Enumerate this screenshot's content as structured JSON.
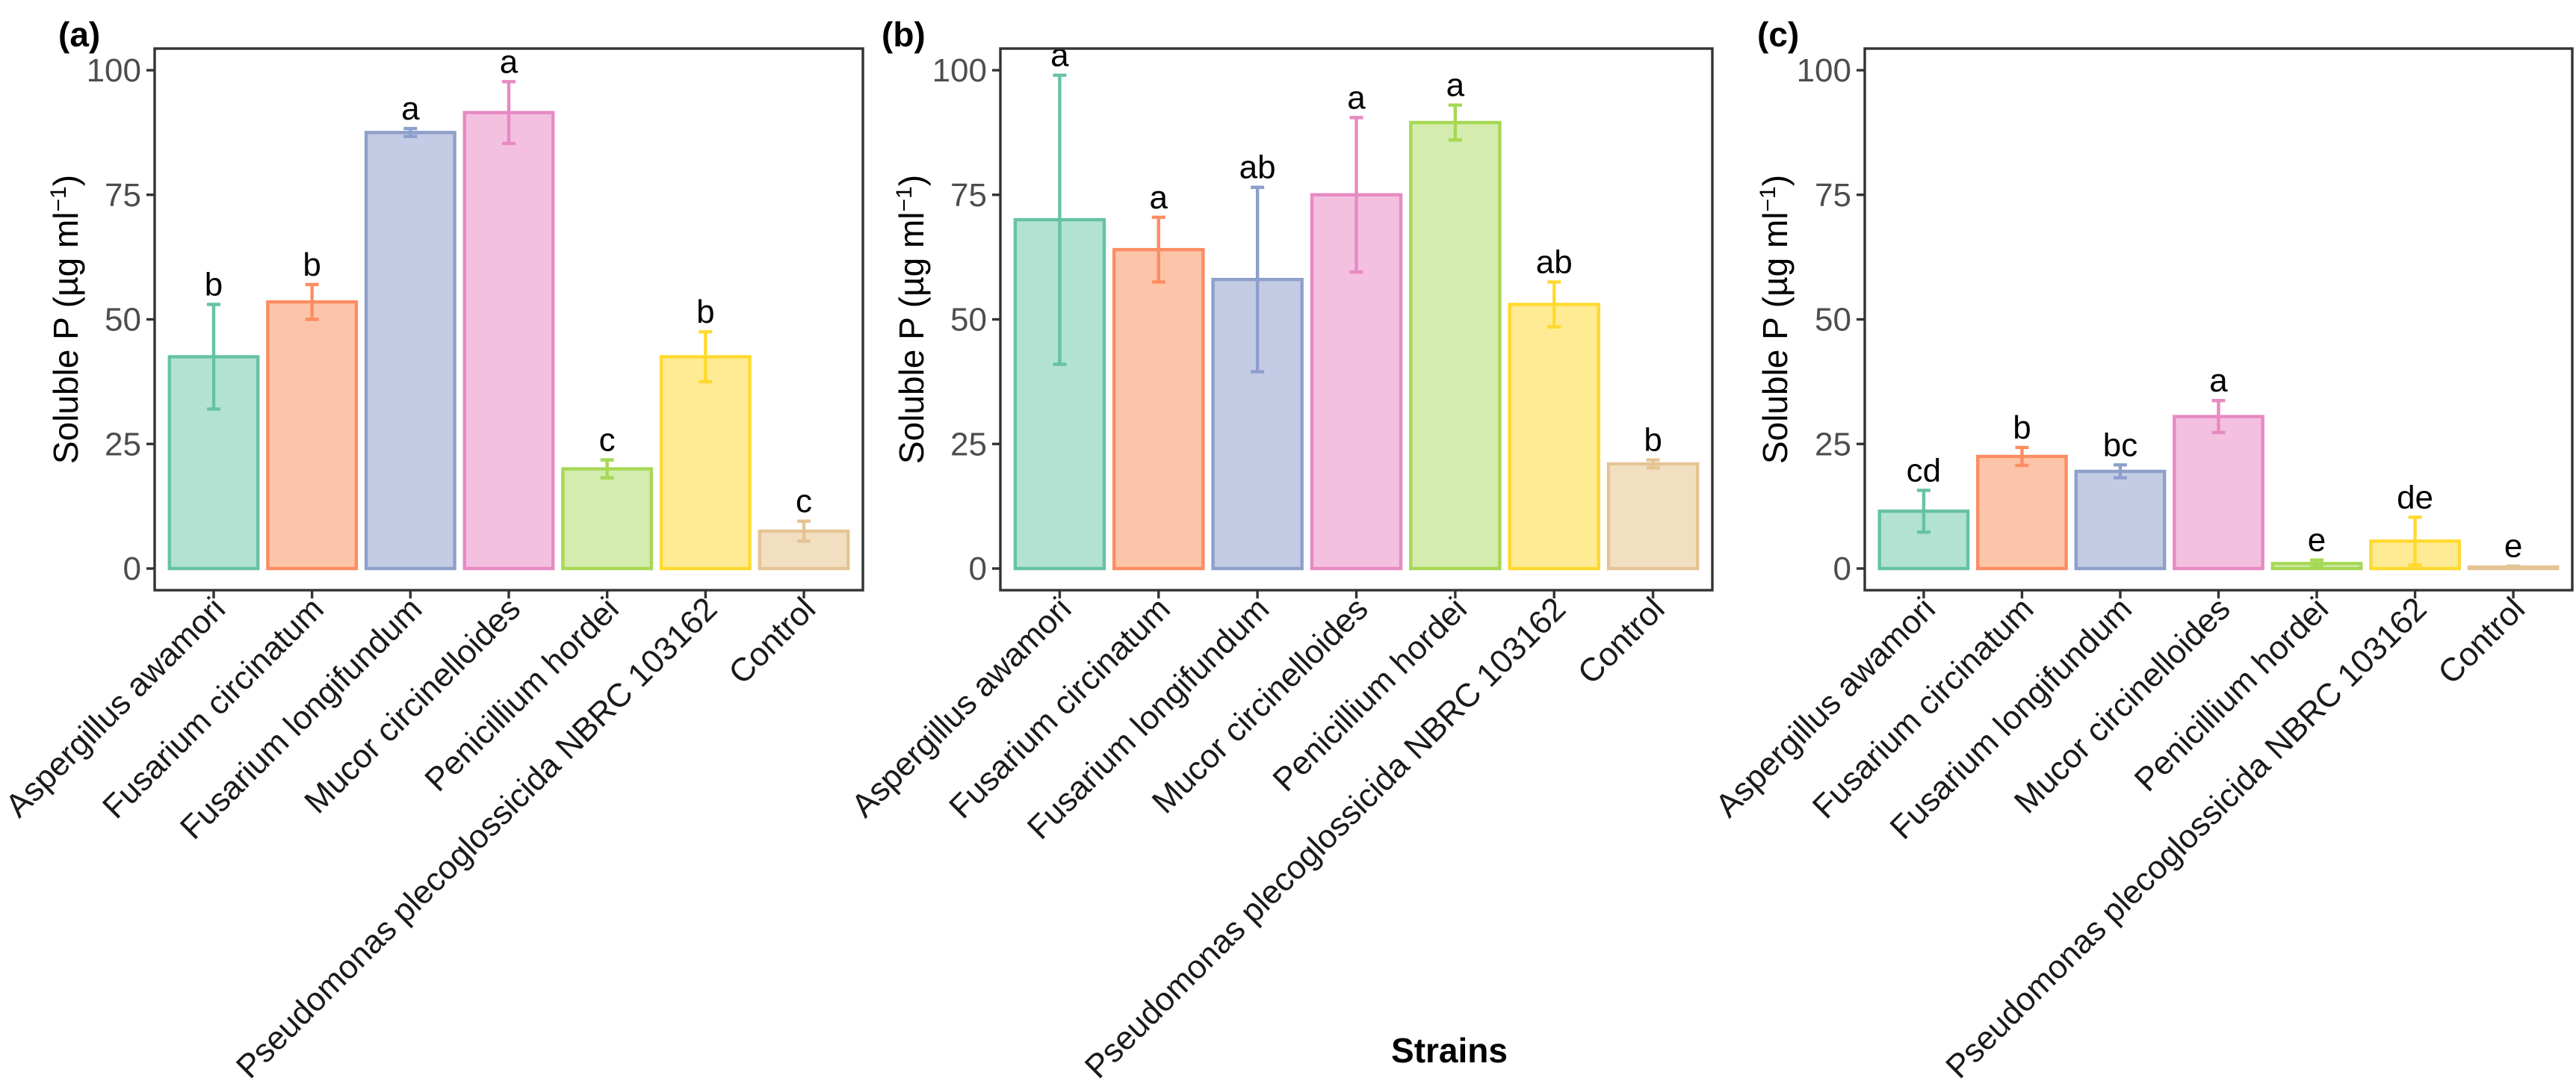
{
  "figure": {
    "x_axis_title": "Strains",
    "y_axis_label_main": "Soluble P (µg ml",
    "y_axis_label_sup": "−1",
    "y_axis_label_close": ")"
  },
  "chart_data": [
    {
      "type": "bar",
      "panel_label": "(a)",
      "title": "",
      "xlabel": "",
      "ylabel": "Soluble P (µg ml⁻¹)",
      "ylim": [
        0,
        100
      ],
      "yticks": [
        "0",
        "25",
        "50",
        "75",
        "100"
      ],
      "grid": false,
      "categories": [
        "Aspergillus awamori",
        "Fusarium circinatum",
        "Fusarium longifundum",
        "Mucor circinelloides",
        "Penicillium hordei",
        "Pseudomonas plecoglossicida NBRC 103162",
        "Control"
      ],
      "values": [
        42.5,
        53.5,
        87.5,
        91.5,
        20,
        42.5,
        7.5
      ],
      "errors": [
        10.5,
        3.5,
        0.8,
        6.2,
        1.8,
        5,
        2
      ],
      "significance": [
        "b",
        "b",
        "a",
        "a",
        "c",
        "b",
        "c"
      ]
    },
    {
      "type": "bar",
      "panel_label": "(b)",
      "title": "",
      "xlabel": "",
      "ylabel": "Soluble P (µg ml⁻¹)",
      "ylim": [
        0,
        100
      ],
      "yticks": [
        "0",
        "25",
        "50",
        "75",
        "100"
      ],
      "grid": false,
      "categories": [
        "Aspergillus awamori",
        "Fusarium circinatum",
        "Fusarium longifundum",
        "Mucor circinelloides",
        "Penicillium hordei",
        "Pseudomonas plecoglossicida NBRC 103162",
        "Control"
      ],
      "values": [
        70,
        64,
        58,
        75,
        89.5,
        53,
        21
      ],
      "errors": [
        29,
        6.5,
        18.5,
        15.5,
        3.5,
        4.5,
        0.8
      ],
      "significance": [
        "a",
        "a",
        "ab",
        "a",
        "a",
        "ab",
        "b"
      ]
    },
    {
      "type": "bar",
      "panel_label": "(c)",
      "title": "",
      "xlabel": "",
      "ylabel": "Soluble P (µg ml⁻¹)",
      "ylim": [
        0,
        100
      ],
      "yticks": [
        "0",
        "25",
        "50",
        "75",
        "100"
      ],
      "grid": false,
      "categories": [
        "Aspergillus awamori",
        "Fusarium circinatum",
        "Fusarium longifundum",
        "Mucor circinelloides",
        "Penicillium hordei",
        "Pseudomonas plecoglossicida NBRC 103162",
        "Control"
      ],
      "values": [
        11.5,
        22.5,
        19.5,
        30.5,
        1,
        5.5,
        0.3
      ],
      "errors": [
        4.2,
        1.8,
        1.3,
        3.2,
        0.7,
        4.8,
        0.2
      ],
      "significance": [
        "cd",
        "b",
        "bc",
        "a",
        "e",
        "de",
        "e"
      ]
    }
  ],
  "colors": {
    "fills": [
      "#b2e2d2",
      "#fcc5a9",
      "#c4cbe4",
      "#f4c0df",
      "#d4ecae",
      "#feeb94",
      "#f2dfc2"
    ],
    "strokes": [
      "#66c2a5",
      "#fc8d62",
      "#8da0cb",
      "#e78ac3",
      "#a6d854",
      "#ffd92f",
      "#e5c494"
    ]
  }
}
